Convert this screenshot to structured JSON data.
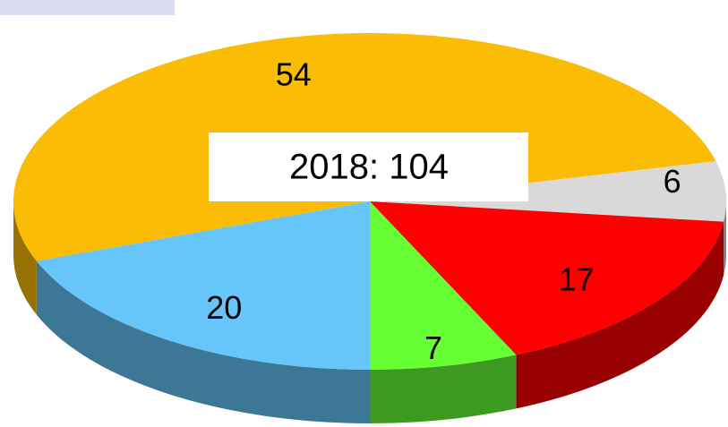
{
  "chart_data": {
    "type": "pie",
    "annotation": "2018:   104",
    "values": [
      20,
      54,
      6,
      17,
      7
    ],
    "colors": [
      "#66c6fa",
      "#fbbc05",
      "#d9d9d9",
      "#ff0000",
      "#66ff33"
    ]
  }
}
